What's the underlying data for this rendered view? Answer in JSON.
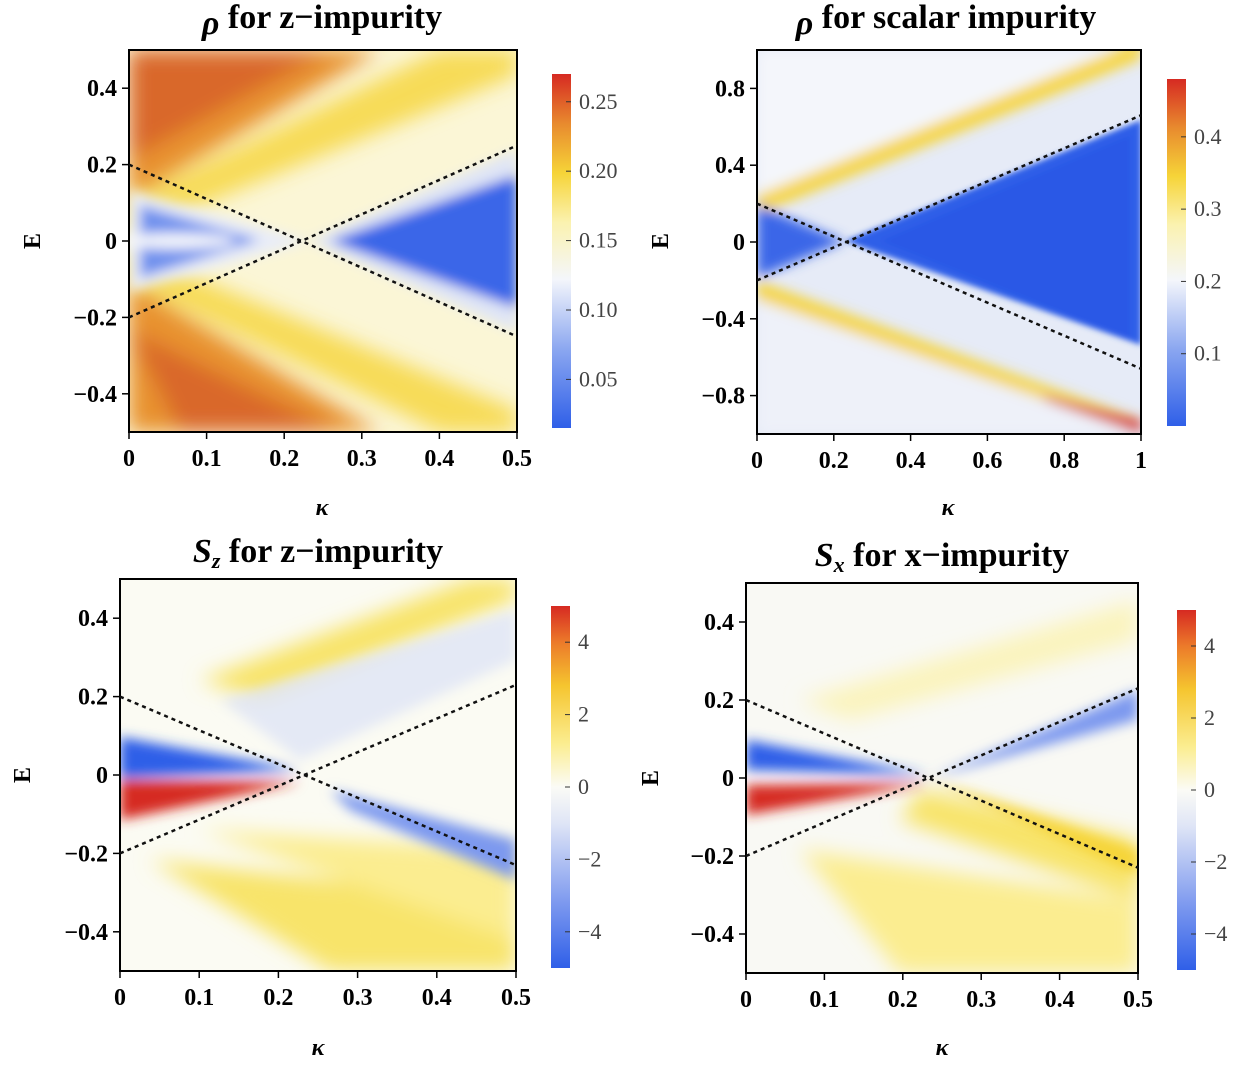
{
  "chart_data": [
    {
      "type": "heatmap",
      "title_main": "ρ",
      "title_sub": "",
      "title_rest": " for z−impurity",
      "xlabel": "κ",
      "ylabel": "E",
      "xlim": [
        0,
        0.5
      ],
      "ylim": [
        -0.5,
        0.5
      ],
      "x_ticks": [
        0,
        0.1,
        0.2,
        0.3,
        0.4,
        0.5
      ],
      "x_tick_labels": [
        "0",
        "0.1",
        "0.2",
        "0.3",
        "0.4",
        "0.5"
      ],
      "y_ticks": [
        0.4,
        0.2,
        0,
        -0.2,
        -0.4
      ],
      "y_tick_labels": [
        "0.4",
        "0.2",
        "0",
        "−0.2",
        "−0.4"
      ],
      "colorbar": {
        "range": [
          0.015,
          0.27
        ],
        "ticks": [
          0.25,
          0.2,
          0.15,
          0.1,
          0.05
        ],
        "tick_labels": [
          "0.25",
          "0.20",
          "0.15",
          "0.10",
          "0.05"
        ],
        "scheme": "diverging-blue-white-yellow-red"
      },
      "dashed_lines": [
        {
          "x": [
            0,
            0.5
          ],
          "y": [
            0.2,
            -0.25
          ]
        },
        {
          "x": [
            0,
            0.5
          ],
          "y": [
            -0.2,
            0.25
          ]
        }
      ],
      "grid": false,
      "legend": "none"
    },
    {
      "type": "heatmap",
      "title_main": "ρ",
      "title_sub": "",
      "title_rest": " for scalar impurity",
      "xlabel": "κ",
      "ylabel": "E",
      "xlim": [
        0,
        1
      ],
      "ylim": [
        -1,
        1
      ],
      "x_ticks": [
        0,
        0.2,
        0.4,
        0.6,
        0.8,
        1
      ],
      "x_tick_labels": [
        "0",
        "0.2",
        "0.4",
        "0.6",
        "0.8",
        "1"
      ],
      "y_ticks": [
        0.8,
        0.4,
        0,
        -0.4,
        -0.8
      ],
      "y_tick_labels": [
        "0.8",
        "0.4",
        "0",
        "−0.4",
        "−0.8"
      ],
      "colorbar": {
        "range": [
          0.0,
          0.48
        ],
        "ticks": [
          0.4,
          0.3,
          0.2,
          0.1
        ],
        "tick_labels": [
          "0.4",
          "0.3",
          "0.2",
          "0.1"
        ],
        "scheme": "diverging-blue-white-yellow-red"
      },
      "dashed_lines": [
        {
          "x": [
            0,
            1
          ],
          "y": [
            0.2,
            -0.66
          ]
        },
        {
          "x": [
            0,
            1
          ],
          "y": [
            -0.2,
            0.66
          ]
        }
      ],
      "grid": false,
      "legend": "none"
    },
    {
      "type": "heatmap",
      "title_main": "S",
      "title_sub": "z",
      "title_rest": " for z−impurity",
      "xlabel": "κ",
      "ylabel": "E",
      "xlim": [
        0,
        0.5
      ],
      "ylim": [
        -0.5,
        0.5
      ],
      "x_ticks": [
        0,
        0.1,
        0.2,
        0.3,
        0.4,
        0.5
      ],
      "x_tick_labels": [
        "0",
        "0.1",
        "0.2",
        "0.3",
        "0.4",
        "0.5"
      ],
      "y_ticks": [
        0.4,
        0.2,
        0,
        -0.2,
        -0.4
      ],
      "y_tick_labels": [
        "0.4",
        "0.2",
        "0",
        "−0.2",
        "−0.4"
      ],
      "colorbar": {
        "range": [
          -5,
          5
        ],
        "ticks": [
          4,
          2,
          0,
          -2,
          -4
        ],
        "tick_labels": [
          "4",
          "2",
          "0",
          "−2",
          "−4"
        ],
        "scheme": "diverging-blue-white-yellow-red"
      },
      "dashed_lines": [
        {
          "x": [
            0,
            0.5
          ],
          "y": [
            0.2,
            -0.23
          ]
        },
        {
          "x": [
            0,
            0.5
          ],
          "y": [
            -0.2,
            0.23
          ]
        }
      ],
      "grid": false,
      "legend": "none"
    },
    {
      "type": "heatmap",
      "title_main": "S",
      "title_sub": "x",
      "title_rest": " for x−impurity",
      "xlabel": "κ",
      "ylabel": "E",
      "xlim": [
        0,
        0.5
      ],
      "ylim": [
        -0.5,
        0.5
      ],
      "x_ticks": [
        0,
        0.1,
        0.2,
        0.3,
        0.4,
        0.5
      ],
      "x_tick_labels": [
        "0",
        "0.1",
        "0.2",
        "0.3",
        "0.4",
        "0.5"
      ],
      "y_ticks": [
        0.4,
        0.2,
        0,
        -0.2,
        -0.4
      ],
      "y_tick_labels": [
        "0.4",
        "0.2",
        "0",
        "−0.2",
        "−0.4"
      ],
      "colorbar": {
        "range": [
          -5,
          5
        ],
        "ticks": [
          4,
          2,
          0,
          -2,
          -4
        ],
        "tick_labels": [
          "4",
          "2",
          "0",
          "−2",
          "−4"
        ],
        "scheme": "diverging-blue-white-yellow-red"
      },
      "dashed_lines": [
        {
          "x": [
            0,
            0.5
          ],
          "y": [
            0.2,
            -0.23
          ]
        },
        {
          "x": [
            0,
            0.5
          ],
          "y": [
            -0.2,
            0.23
          ]
        }
      ],
      "grid": false,
      "legend": "none"
    }
  ]
}
